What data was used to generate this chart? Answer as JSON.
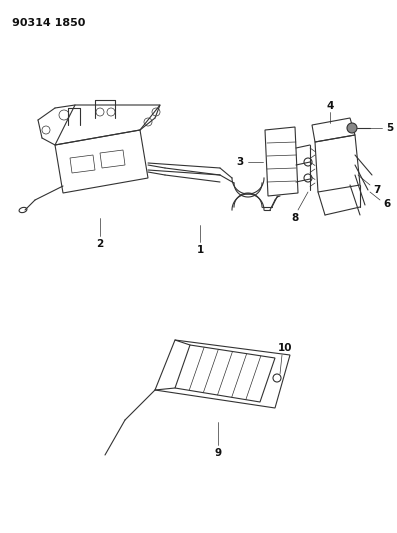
{
  "title_code": "90314 1850",
  "bg_color": "#ffffff",
  "line_color": "#333333",
  "label_color": "#111111",
  "fig_width": 3.97,
  "fig_height": 5.33,
  "dpi": 100
}
